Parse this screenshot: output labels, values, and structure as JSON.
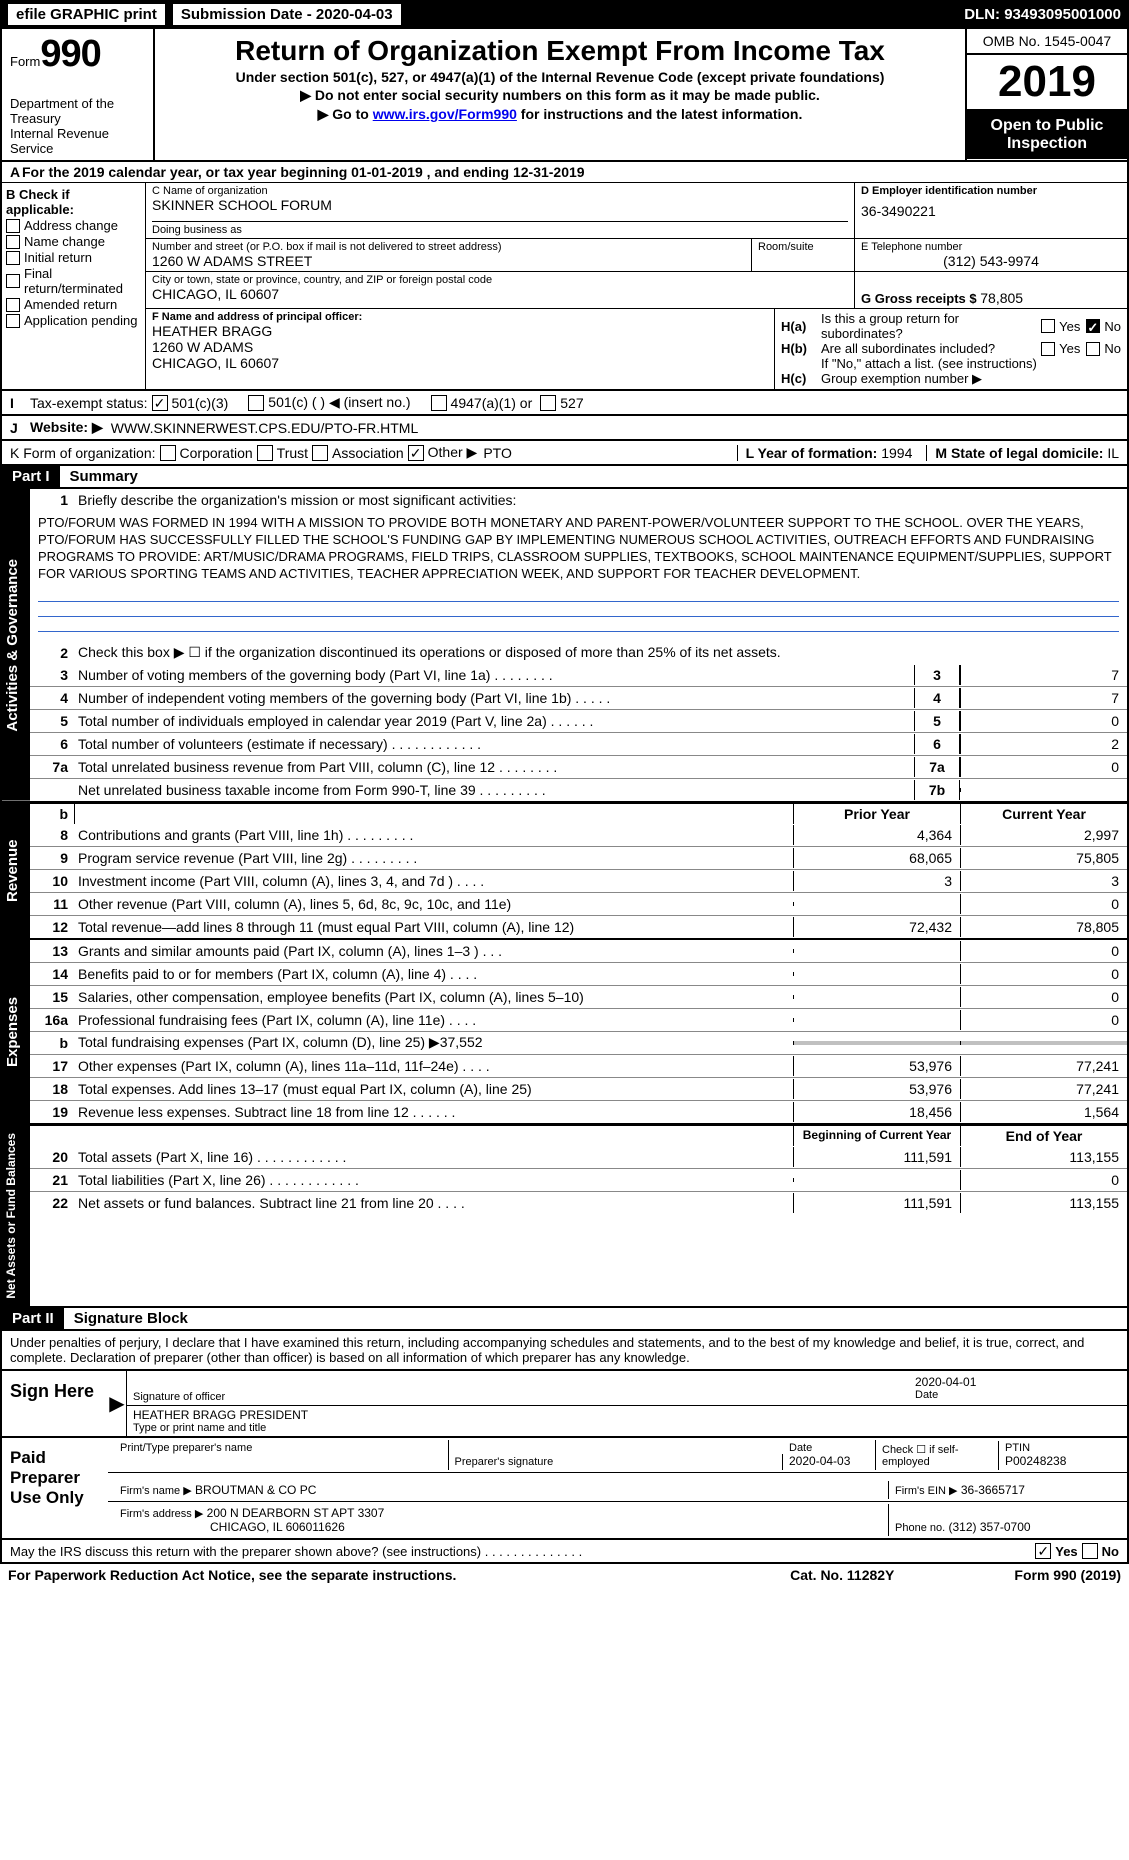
{
  "topbar": {
    "efile": "efile GRAPHIC print",
    "submission_label": "Submission Date - ",
    "submission_date": "2020-04-03",
    "dln_label": "DLN:",
    "dln": "93493095001000"
  },
  "header": {
    "form_prefix": "Form",
    "form_number": "990",
    "dept1": "Department of the Treasury",
    "dept2": "Internal Revenue Service",
    "title": "Return of Organization Exempt From Income Tax",
    "subtitle": "Under section 501(c), 527, or 4947(a)(1) of the Internal Revenue Code (except private foundations)",
    "note1": "▶ Do not enter social security numbers on this form as it may be made public.",
    "note2_pre": "▶ Go to ",
    "note2_link": "www.irs.gov/Form990",
    "note2_post": " for instructions and the latest information.",
    "omb": "OMB No. 1545-0047",
    "year": "2019",
    "open": "Open to Public Inspection"
  },
  "row_a": "For the 2019 calendar year, or tax year beginning 01-01-2019    , and ending 12-31-2019",
  "col_b": {
    "label": "B Check if applicable:",
    "items": [
      "Address change",
      "Name change",
      "Initial return",
      "Final return/terminated",
      "Amended return",
      "Application pending"
    ]
  },
  "org": {
    "c_label": "C Name of organization",
    "name": "SKINNER SCHOOL FORUM",
    "dba_label": "Doing business as",
    "dba": "",
    "street_label": "Number and street (or P.O. box if mail is not delivered to street address)",
    "street": "1260 W ADAMS STREET",
    "room_label": "Room/suite",
    "city_label": "City or town, state or province, country, and ZIP or foreign postal code",
    "city": "CHICAGO, IL  60607",
    "f_label": "F Name and address of principal officer:",
    "officer": "HEATHER BRAGG",
    "officer_addr1": "1260 W ADAMS",
    "officer_addr2": "CHICAGO, IL  60607"
  },
  "right": {
    "d_label": "D Employer identification number",
    "ein": "36-3490221",
    "e_label": "E Telephone number",
    "phone": "(312) 543-9974",
    "g_label": "G Gross receipts $",
    "gross": "78,805",
    "ha_label": "Is this a group return for subordinates?",
    "hb_label": "Are all subordinates included?",
    "hb_note": "If \"No,\" attach a list. (see instructions)",
    "hc_label": "Group exemption number ▶"
  },
  "exempt": {
    "label": "Tax-exempt status:",
    "opt1": "501(c)(3)",
    "opt2": "501(c) (   ) ◀ (insert no.)",
    "opt3": "4947(a)(1) or",
    "opt4": "527"
  },
  "website": {
    "label": "Website: ▶",
    "value": "WWW.SKINNERWEST.CPS.EDU/PTO-FR.HTML"
  },
  "formorg": {
    "label": "K Form of organization:",
    "opts": [
      "Corporation",
      "Trust",
      "Association",
      "Other ▶"
    ],
    "other_val": "PTO",
    "l_label": "L Year of formation:",
    "l_val": "1994",
    "m_label": "M State of legal domicile:",
    "m_val": "IL"
  },
  "part1_title": "Summary",
  "summary": {
    "line1_label": "Briefly describe the organization's mission or most significant activities:",
    "mission": "PTO/FORUM WAS FORMED IN 1994 WITH A MISSION TO PROVIDE BOTH MONETARY AND PARENT-POWER/VOLUNTEER SUPPORT TO THE SCHOOL. OVER THE YEARS, PTO/FORUM HAS SUCCESSFULLY FILLED THE SCHOOL'S FUNDING GAP BY IMPLEMENTING NUMEROUS SCHOOL ACTIVITIES, OUTREACH EFFORTS AND FUNDRAISING PROGRAMS TO PROVIDE: ART/MUSIC/DRAMA PROGRAMS, FIELD TRIPS, CLASSROOM SUPPLIES, TEXTBOOKS, SCHOOL MAINTENANCE EQUIPMENT/SUPPLIES, SUPPORT FOR VARIOUS SPORTING TEAMS AND ACTIVITIES, TEACHER APPRECIATION WEEK, AND SUPPORT FOR TEACHER DEVELOPMENT.",
    "line2": "Check this box ▶ ☐  if the organization discontinued its operations or disposed of more than 25% of its net assets.",
    "rows_gov": [
      {
        "n": "3",
        "d": "Number of voting members of the governing body (Part VI, line 1a)  .    .    .    .    .    .    .    .",
        "m": "3",
        "v": "7"
      },
      {
        "n": "4",
        "d": "Number of independent voting members of the governing body (Part VI, line 1b)   .    .    .    .    .",
        "m": "4",
        "v": "7"
      },
      {
        "n": "5",
        "d": "Total number of individuals employed in calendar year 2019 (Part V, line 2a)   .    .    .    .    .    .",
        "m": "5",
        "v": "0"
      },
      {
        "n": "6",
        "d": "Total number of volunteers (estimate if necessary)   .    .    .    .    .    .    .    .    .    .    .    .",
        "m": "6",
        "v": "2"
      },
      {
        "n": "7a",
        "d": "Total unrelated business revenue from Part VIII, column (C), line 12   .    .    .    .    .    .    .    .",
        "m": "7a",
        "v": "0"
      },
      {
        "n": "",
        "d": "Net unrelated business taxable income from Form 990-T, line 39   .    .    .    .    .    .    .    .    .",
        "m": "7b",
        "v": ""
      }
    ],
    "prior_label": "Prior Year",
    "current_label": "Current Year",
    "rows_rev": [
      {
        "n": "8",
        "d": "Contributions and grants (Part VIII, line 1h)   .    .    .    .    .    .    .    .    .",
        "p": "4,364",
        "c": "2,997"
      },
      {
        "n": "9",
        "d": "Program service revenue (Part VIII, line 2g)   .    .    .    .    .    .    .    .    .",
        "p": "68,065",
        "c": "75,805"
      },
      {
        "n": "10",
        "d": "Investment income (Part VIII, column (A), lines 3, 4, and 7d )   .    .    .    .",
        "p": "3",
        "c": "3"
      },
      {
        "n": "11",
        "d": "Other revenue (Part VIII, column (A), lines 5, 6d, 8c, 9c, 10c, and 11e)",
        "p": "",
        "c": "0"
      },
      {
        "n": "12",
        "d": "Total revenue—add lines 8 through 11 (must equal Part VIII, column (A), line 12)",
        "p": "72,432",
        "c": "78,805"
      }
    ],
    "rows_exp": [
      {
        "n": "13",
        "d": "Grants and similar amounts paid (Part IX, column (A), lines 1–3 )    .    .    .",
        "p": "",
        "c": "0"
      },
      {
        "n": "14",
        "d": "Benefits paid to or for members (Part IX, column (A), line 4)   .    .    .    .",
        "p": "",
        "c": "0"
      },
      {
        "n": "15",
        "d": "Salaries, other compensation, employee benefits (Part IX, column (A), lines 5–10)",
        "p": "",
        "c": "0"
      },
      {
        "n": "16a",
        "d": "Professional fundraising fees (Part IX, column (A), line 11e)   .    .    .    .",
        "p": "",
        "c": "0"
      },
      {
        "n": "b",
        "d": "Total fundraising expenses (Part IX, column (D), line 25) ▶37,552",
        "p": "grey",
        "c": "grey"
      },
      {
        "n": "17",
        "d": "Other expenses (Part IX, column (A), lines 11a–11d, 11f–24e)   .    .    .    .",
        "p": "53,976",
        "c": "77,241"
      },
      {
        "n": "18",
        "d": "Total expenses. Add lines 13–17 (must equal Part IX, column (A), line 25)",
        "p": "53,976",
        "c": "77,241"
      },
      {
        "n": "19",
        "d": "Revenue less expenses. Subtract line 18 from line 12   .    .    .    .    .    .",
        "p": "18,456",
        "c": "1,564"
      }
    ],
    "begin_label": "Beginning of Current Year",
    "end_label": "End of Year",
    "rows_net": [
      {
        "n": "20",
        "d": "Total assets (Part X, line 16)   .    .    .    .    .    .    .    .    .    .    .    .",
        "p": "111,591",
        "c": "113,155"
      },
      {
        "n": "21",
        "d": "Total liabilities (Part X, line 26)   .    .    .    .    .    .    .    .    .    .    .    .",
        "p": "",
        "c": "0"
      },
      {
        "n": "22",
        "d": "Net assets or fund balances. Subtract line 21 from line 20   .    .    .    .",
        "p": "111,591",
        "c": "113,155"
      }
    ]
  },
  "part2_title": "Signature Block",
  "sig": {
    "declaration": "Under penalties of perjury, I declare that I have examined this return, including accompanying schedules and statements, and to the best of my knowledge and belief, it is true, correct, and complete. Declaration of preparer (other than officer) is based on all information of which preparer has any knowledge.",
    "sign_here": "Sign Here",
    "sig_officer_label": "Signature of officer",
    "sig_date": "2020-04-01",
    "date_label": "Date",
    "officer_name": "HEATHER BRAGG  PRESIDENT",
    "type_name_label": "Type or print name and title",
    "paid_label": "Paid Preparer Use Only",
    "print_name_label": "Print/Type preparer's name",
    "prep_sig_label": "Preparer's signature",
    "prep_date": "2020-04-03",
    "check_if": "Check ☐  if self-employed",
    "ptin_label": "PTIN",
    "ptin": "P00248238",
    "firm_name_label": "Firm's name     ▶",
    "firm_name": "BROUTMAN & CO PC",
    "firm_ein_label": "Firm's EIN ▶",
    "firm_ein": "36-3665717",
    "firm_addr_label": "Firm's address ▶",
    "firm_addr1": "200 N DEARBORN ST APT 3307",
    "firm_addr2": "CHICAGO, IL  606011626",
    "firm_phone_label": "Phone no.",
    "firm_phone": "(312) 357-0700"
  },
  "footer": {
    "discuss": "May the IRS discuss this return with the preparer shown above? (see instructions)   .    .    .    .    .    .    .    .    .    .    .    .    .    .",
    "yes": "Yes",
    "no": "No",
    "paperwork": "For Paperwork Reduction Act Notice, see the separate instructions.",
    "cat": "Cat. No. 11282Y",
    "form": "Form 990 (2019)"
  },
  "labels": {
    "part1": "Part I",
    "part2": "Part II",
    "vert_gov": "Activities & Governance",
    "vert_rev": "Revenue",
    "vert_exp": "Expenses",
    "vert_net": "Net Assets or Fund Balances",
    "h_ha": "H(a)",
    "h_hb": "H(b)",
    "h_hc": "H(c)",
    "yes": "Yes",
    "no": "No",
    "i_label": "I",
    "j_label": "J",
    "a_label": "A"
  }
}
